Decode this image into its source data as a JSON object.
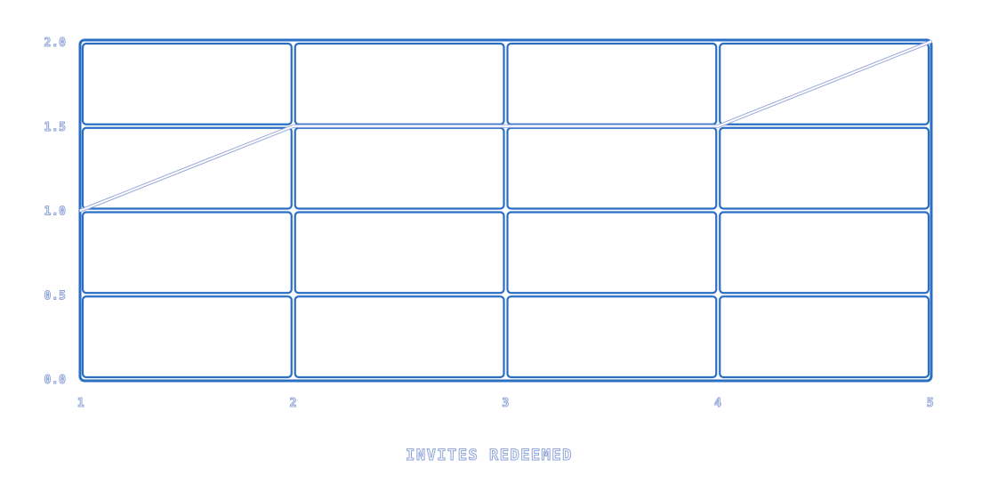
{
  "chart_data": {
    "type": "line",
    "title": "",
    "xlabel": "INVITES REDEEMED",
    "ylabel": "",
    "x": [
      1,
      2,
      3,
      4,
      5
    ],
    "x_tick_labels": [
      "1",
      "2",
      "3",
      "4",
      "5"
    ],
    "y_tick_labels": [
      "0.0",
      "0.5",
      "1.0",
      "1.5",
      "2.0"
    ],
    "y_ticks": [
      0,
      0.5,
      1.0,
      1.5,
      2.0
    ],
    "xlim": [
      1,
      5
    ],
    "ylim": [
      0,
      2.0
    ],
    "grid": true,
    "series": [
      {
        "values": [
          1.0,
          1.5,
          1.5,
          1.5,
          2.0
        ]
      }
    ],
    "colors": {
      "grid": "#2a6fc4",
      "line": "#ffffff",
      "line_outline": "#9aa8dc",
      "text_outline": "#8fa4d8"
    }
  }
}
